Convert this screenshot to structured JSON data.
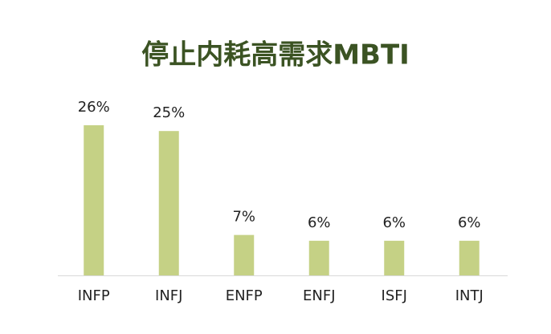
{
  "chart_data": {
    "type": "bar",
    "title": "停止内耗高需求MBTI",
    "categories": [
      "INFP",
      "INFJ",
      "ENFP",
      "ENFJ",
      "ISFJ",
      "INTJ"
    ],
    "values": [
      26,
      25,
      7,
      6,
      6,
      6
    ],
    "value_labels": [
      "26%",
      "25%",
      "7%",
      "6%",
      "6%",
      "6%"
    ],
    "color": "#c5d185"
  }
}
